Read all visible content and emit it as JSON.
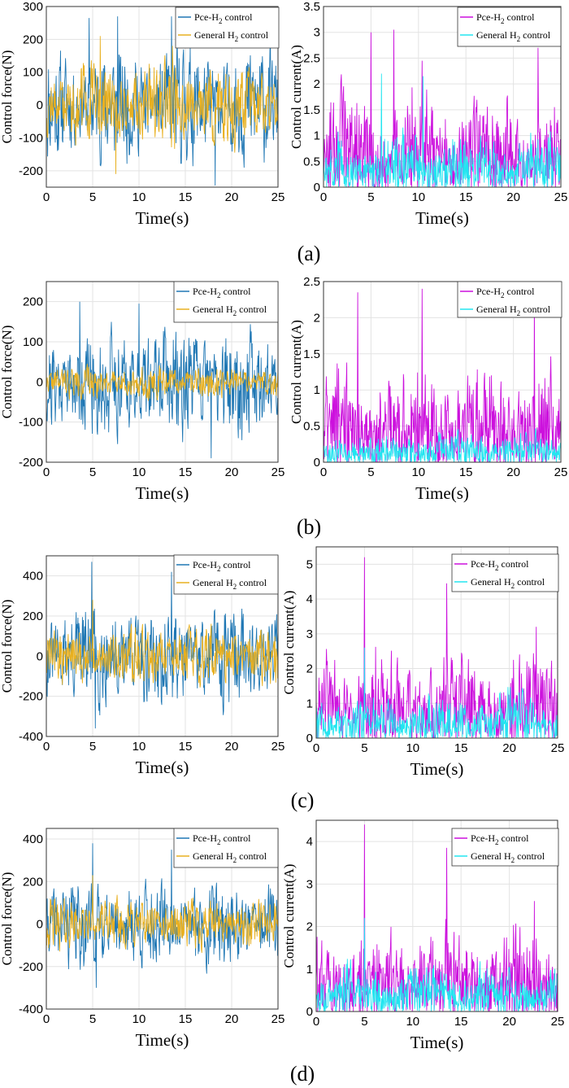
{
  "figure": {
    "panel_labels": [
      "(a)",
      "(b)",
      "(c)",
      "(d)"
    ]
  },
  "colors": {
    "force_pce": "#1f77b4",
    "force_general": "#e8b020",
    "current_pce": "#cc11dd",
    "current_general": "#22e5f0",
    "grid": "#e3e3e3"
  },
  "chart_data": [
    {
      "id": "a-force",
      "type": "line",
      "xlabel": "Time(s)",
      "ylabel": "Control force(N)",
      "xlim": [
        0,
        25
      ],
      "ylim": [
        -250,
        300
      ],
      "xticks": [
        0,
        5,
        10,
        15,
        20,
        25
      ],
      "yticks": [
        300,
        200,
        100,
        0,
        -100,
        -200
      ],
      "grid": true,
      "legend": "top-right",
      "series": [
        {
          "name": "Pce-H",
          "sub": "2",
          "tail": " control",
          "color_key": "force_pce",
          "amp": 95,
          "maxabs": 280,
          "seed": 11,
          "keys": [
            [
              4.6,
              265
            ],
            [
              7.7,
              270
            ],
            [
              13.5,
              270
            ],
            [
              18.2,
              -245
            ]
          ]
        },
        {
          "name": "General H",
          "sub": "2",
          "tail": " control",
          "color_key": "force_general",
          "amp": 70,
          "maxabs": 215,
          "seed": 12,
          "keys": [
            [
              5.8,
              210
            ],
            [
              7.5,
              -210
            ],
            [
              13.6,
              180
            ]
          ]
        }
      ]
    },
    {
      "id": "a-current",
      "type": "line",
      "xlabel": "Time(s)",
      "ylabel": "Control current(A)",
      "xlim": [
        0,
        25
      ],
      "ylim": [
        0,
        3.5
      ],
      "xticks": [
        0,
        5,
        10,
        15,
        20,
        25
      ],
      "yticks": [
        3.5,
        3,
        2.5,
        2,
        1.5,
        1,
        0.5,
        0
      ],
      "grid": true,
      "legend": "top-right",
      "series": [
        {
          "name": "Pce-H",
          "sub": "2",
          "tail": " control",
          "color_key": "current_pce",
          "amp": 0.95,
          "maxabs": 3.05,
          "seed": 13,
          "keys": [
            [
              5.0,
              3.0
            ],
            [
              7.4,
              3.05
            ],
            [
              10.4,
              2.45
            ],
            [
              22.6,
              2.7
            ]
          ]
        },
        {
          "name": "General H",
          "sub": "2",
          "tail": " control",
          "color_key": "current_general",
          "amp": 0.55,
          "maxabs": 2.2,
          "seed": 14,
          "keys": [
            [
              6.1,
              2.2
            ],
            [
              10.5,
              2.15
            ]
          ]
        }
      ]
    },
    {
      "id": "b-force",
      "type": "line",
      "xlabel": "Time(s)",
      "ylabel": "Control force(N)",
      "xlim": [
        0,
        25
      ],
      "ylim": [
        -200,
        250
      ],
      "xticks": [
        0,
        5,
        10,
        15,
        20,
        25
      ],
      "yticks": [
        200,
        100,
        0,
        -100,
        -200
      ],
      "grid": true,
      "legend": "top-right",
      "series": [
        {
          "name": "Pce-H",
          "sub": "2",
          "tail": " control",
          "color_key": "force_pce",
          "amp": 75,
          "maxabs": 200,
          "seed": 21,
          "keys": [
            [
              3.6,
              200
            ],
            [
              10.0,
              195
            ],
            [
              17.8,
              -190
            ]
          ]
        },
        {
          "name": "General H",
          "sub": "2",
          "tail": " control",
          "color_key": "force_general",
          "amp": 22,
          "maxabs": 55,
          "seed": 22,
          "keys": []
        }
      ]
    },
    {
      "id": "b-current",
      "type": "line",
      "xlabel": "Time(s)",
      "ylabel": "Control current(A)",
      "xlim": [
        0,
        25
      ],
      "ylim": [
        0,
        2.5
      ],
      "xticks": [
        0,
        5,
        10,
        15,
        20,
        25
      ],
      "yticks": [
        2.5,
        2,
        1.5,
        1,
        0.5,
        0
      ],
      "grid": true,
      "legend": "top-right",
      "series": [
        {
          "name": "Pce-H",
          "sub": "2",
          "tail": " control",
          "color_key": "current_pce",
          "amp": 0.7,
          "maxabs": 2.4,
          "seed": 23,
          "keys": [
            [
              3.6,
              2.35
            ],
            [
              10.4,
              2.4
            ],
            [
              22.2,
              2.3
            ]
          ]
        },
        {
          "name": "General H",
          "sub": "2",
          "tail": " control",
          "color_key": "current_general",
          "amp": 0.22,
          "maxabs": 0.65,
          "seed": 24,
          "keys": []
        }
      ]
    },
    {
      "id": "c-force",
      "type": "line",
      "xlabel": "Time(s)",
      "ylabel": "Control force(N)",
      "xlim": [
        0,
        25
      ],
      "ylim": [
        -400,
        500
      ],
      "xticks": [
        0,
        5,
        10,
        15,
        20,
        25
      ],
      "yticks": [
        400,
        200,
        0,
        -200,
        -400
      ],
      "grid": true,
      "legend": "top-right",
      "series": [
        {
          "name": "Pce-H",
          "sub": "2",
          "tail": " control",
          "color_key": "force_pce",
          "amp": 140,
          "maxabs": 470,
          "seed": 31,
          "keys": [
            [
              4.9,
              470
            ],
            [
              5.3,
              -360
            ],
            [
              13.5,
              420
            ]
          ]
        },
        {
          "name": "General H",
          "sub": "2",
          "tail": " control",
          "color_key": "force_general",
          "amp": 80,
          "maxabs": 290,
          "seed": 32,
          "keys": [
            [
              5.0,
              280
            ]
          ]
        }
      ]
    },
    {
      "id": "c-current",
      "type": "line",
      "xlabel": "Time(s)",
      "ylabel": "Control current(A)",
      "xlim": [
        0,
        25
      ],
      "ylim": [
        0,
        5.5
      ],
      "xticks": [
        0,
        5,
        10,
        15,
        20,
        25
      ],
      "yticks": [
        5,
        4,
        3,
        2,
        1,
        0
      ],
      "grid": true,
      "legend": "top-right",
      "series": [
        {
          "name": "Pce-H",
          "sub": "2",
          "tail": " control",
          "color_key": "current_pce",
          "amp": 1.3,
          "maxabs": 5.2,
          "seed": 33,
          "keys": [
            [
              5.0,
              5.2
            ],
            [
              13.5,
              4.45
            ],
            [
              22.8,
              3.2
            ]
          ]
        },
        {
          "name": "General H",
          "sub": "2",
          "tail": " control",
          "color_key": "current_general",
          "amp": 0.7,
          "maxabs": 2.6,
          "seed": 34,
          "keys": [
            [
              5.0,
              2.6
            ]
          ]
        }
      ]
    },
    {
      "id": "d-force",
      "type": "line",
      "xlabel": "Time(s)",
      "ylabel": "Control force(N)",
      "xlim": [
        0,
        25
      ],
      "ylim": [
        -400,
        450
      ],
      "xticks": [
        0,
        5,
        10,
        15,
        20,
        25
      ],
      "yticks": [
        400,
        200,
        0,
        -200,
        -400
      ],
      "grid": true,
      "legend": "top-right",
      "series": [
        {
          "name": "Pce-H",
          "sub": "2",
          "tail": " control",
          "color_key": "force_pce",
          "amp": 110,
          "maxabs": 380,
          "seed": 41,
          "keys": [
            [
              5.0,
              380
            ],
            [
              5.4,
              -300
            ],
            [
              13.5,
              350
            ]
          ]
        },
        {
          "name": "General H",
          "sub": "2",
          "tail": " control",
          "color_key": "force_general",
          "amp": 65,
          "maxabs": 240,
          "seed": 42,
          "keys": [
            [
              5.0,
              230
            ]
          ]
        }
      ]
    },
    {
      "id": "d-current",
      "type": "line",
      "xlabel": "Time(s)",
      "ylabel": "Control current(A)",
      "xlim": [
        0,
        25
      ],
      "ylim": [
        0,
        4.5
      ],
      "xticks": [
        0,
        5,
        10,
        15,
        20,
        25
      ],
      "yticks": [
        4,
        3,
        2,
        1,
        0
      ],
      "grid": true,
      "legend": "top-right",
      "series": [
        {
          "name": "Pce-H",
          "sub": "2",
          "tail": " control",
          "color_key": "current_pce",
          "amp": 1.05,
          "maxabs": 4.4,
          "seed": 43,
          "keys": [
            [
              5.0,
              4.4
            ],
            [
              13.5,
              3.85
            ],
            [
              22.6,
              2.6
            ]
          ]
        },
        {
          "name": "General H",
          "sub": "2",
          "tail": " control",
          "color_key": "current_general",
          "amp": 0.6,
          "maxabs": 2.2,
          "seed": 44,
          "keys": [
            [
              5.0,
              2.2
            ]
          ]
        }
      ]
    }
  ]
}
